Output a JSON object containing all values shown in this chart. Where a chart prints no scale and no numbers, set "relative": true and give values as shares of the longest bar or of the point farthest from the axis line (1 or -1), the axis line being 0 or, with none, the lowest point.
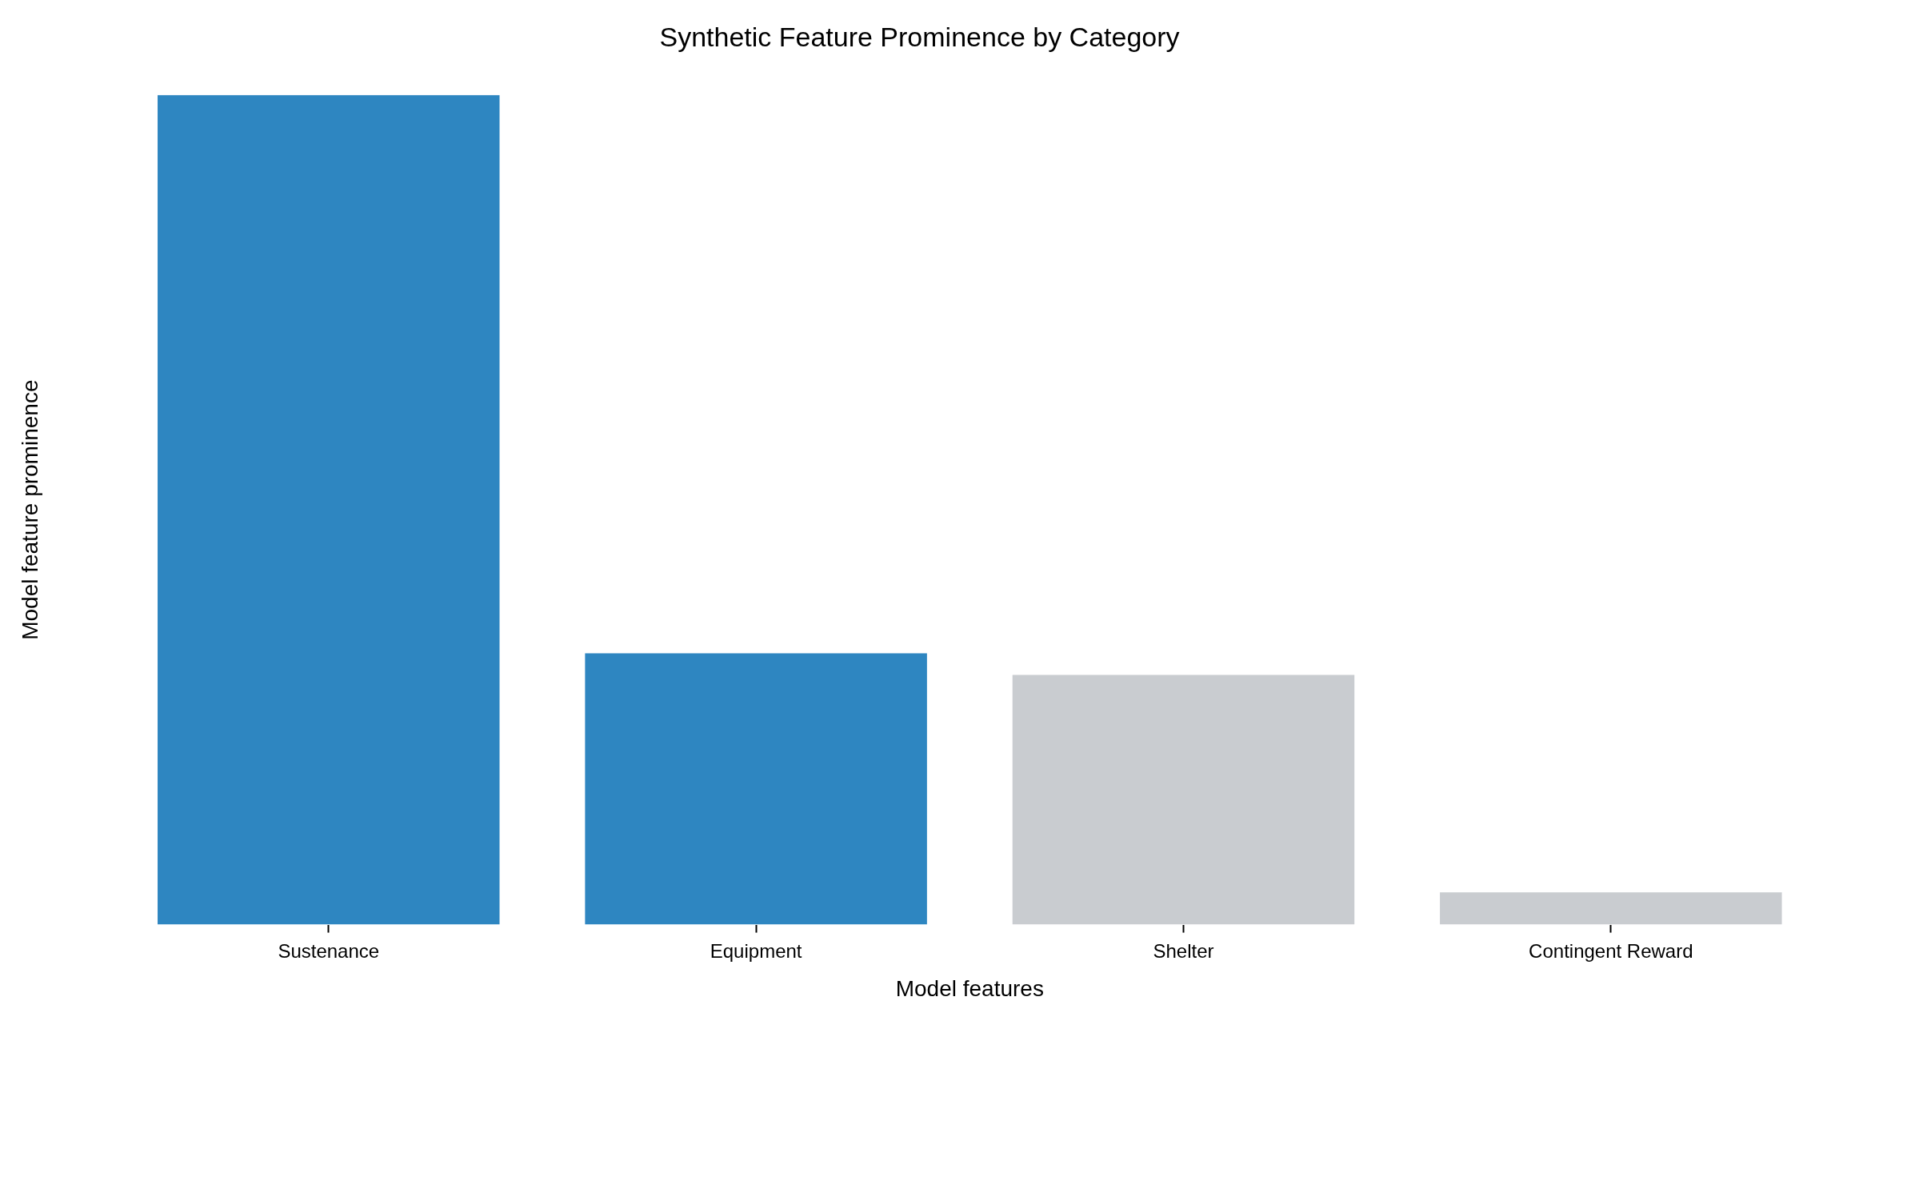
{
  "chart_data": {
    "type": "bar",
    "title": "Synthetic Feature Prominence by Category",
    "xlabel": "Model features",
    "ylabel": "Model feature prominence",
    "relative": true,
    "categories": [
      "Sustenance",
      "Equipment",
      "Shelter",
      "Contingent Reward"
    ],
    "values": [
      1,
      0.327,
      0.301,
      0.039
    ],
    "colors": [
      "#2e86c1",
      "#2e86c1",
      "#c9ccd0",
      "#c9ccd0"
    ],
    "grid": false,
    "legend": false
  }
}
